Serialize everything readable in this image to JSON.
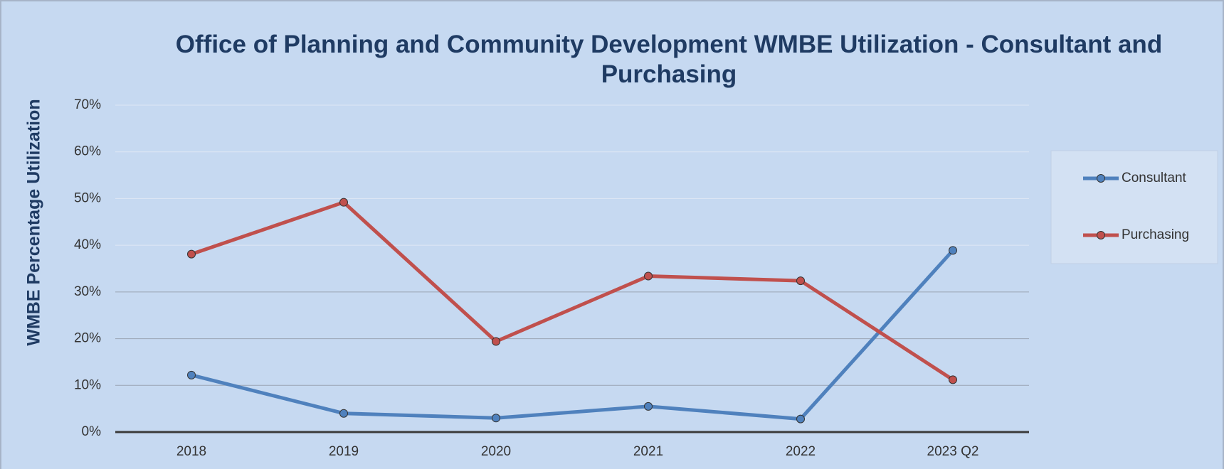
{
  "chart_data": {
    "type": "line",
    "title": "Office of Planning and Community Development WMBE Utilization - Consultant and Purchasing",
    "y_label": "WMBE Percentage Utilization",
    "categories": [
      "2018",
      "2019",
      "2020",
      "2021",
      "2022",
      "2023 Q2"
    ],
    "series": [
      {
        "name": "Consultant",
        "color": "#4f81bd",
        "values": [
          12.2,
          4.0,
          3.0,
          5.5,
          2.8,
          38.9
        ]
      },
      {
        "name": "Purchasing",
        "color": "#c0504d",
        "values": [
          38.1,
          49.2,
          19.4,
          33.4,
          32.4,
          11.2
        ]
      }
    ],
    "ylim": [
      0,
      70
    ],
    "yticks": [
      {
        "value": 0,
        "label": "0%"
      },
      {
        "value": 10,
        "label": "10%"
      },
      {
        "value": 20,
        "label": "20%"
      },
      {
        "value": 30,
        "label": "30%"
      },
      {
        "value": 40,
        "label": "40%"
      },
      {
        "value": 50,
        "label": "50%"
      },
      {
        "value": 60,
        "label": "60%"
      },
      {
        "value": 70,
        "label": "70%"
      }
    ],
    "grid": true,
    "legend": "right"
  }
}
